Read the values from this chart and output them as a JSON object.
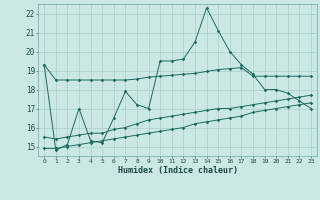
{
  "xlabel": "Humidex (Indice chaleur)",
  "bg_color": "#cce8e4",
  "grid_color": "#aacfca",
  "line_color": "#1a6b60",
  "x_ticks": [
    0,
    1,
    2,
    3,
    4,
    5,
    6,
    7,
    8,
    9,
    10,
    11,
    12,
    13,
    14,
    15,
    16,
    17,
    18,
    19,
    20,
    21,
    22,
    23
  ],
  "ylim": [
    14.5,
    22.5
  ],
  "y_ticks": [
    15,
    16,
    17,
    18,
    19,
    20,
    21,
    22
  ],
  "series1_y": [
    19.3,
    18.5,
    18.5,
    18.5,
    18.5,
    18.5,
    18.5,
    18.5,
    18.55,
    18.65,
    18.7,
    18.75,
    18.8,
    18.85,
    18.95,
    19.05,
    19.1,
    19.15,
    18.7,
    18.7,
    18.7,
    18.7,
    18.7,
    18.7
  ],
  "series2_y": [
    19.3,
    14.8,
    15.1,
    17.0,
    15.3,
    15.2,
    16.5,
    17.9,
    17.2,
    17.0,
    19.5,
    19.5,
    19.6,
    20.5,
    22.3,
    21.1,
    20.0,
    19.3,
    18.8,
    18.0,
    18.0,
    17.8,
    17.4,
    17.0
  ],
  "series3_y": [
    14.9,
    14.9,
    15.0,
    15.1,
    15.2,
    15.3,
    15.4,
    15.5,
    15.6,
    15.7,
    15.8,
    15.9,
    16.0,
    16.2,
    16.3,
    16.4,
    16.5,
    16.6,
    16.8,
    16.9,
    17.0,
    17.1,
    17.2,
    17.3
  ],
  "series4_y": [
    15.5,
    15.4,
    15.5,
    15.6,
    15.7,
    15.7,
    15.9,
    16.0,
    16.2,
    16.4,
    16.5,
    16.6,
    16.7,
    16.8,
    16.9,
    17.0,
    17.0,
    17.1,
    17.2,
    17.3,
    17.4,
    17.5,
    17.6,
    17.7
  ]
}
